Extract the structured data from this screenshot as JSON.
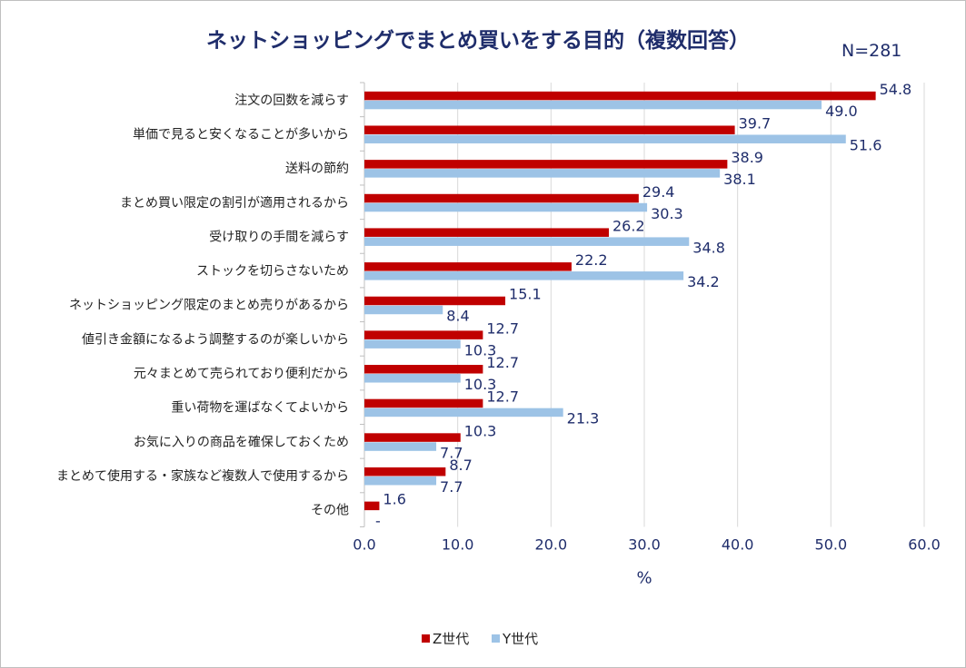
{
  "chart_data": {
    "type": "bar",
    "orientation": "horizontal",
    "title": "ネットショッピングでまとめ買いをする目的（複数回答）",
    "note": "N=281",
    "xlabel": "%",
    "xlim": [
      0,
      60
    ],
    "xticks": [
      "0.0",
      "10.0",
      "20.0",
      "30.0",
      "40.0",
      "50.0",
      "60.0"
    ],
    "grid": true,
    "legend_position": "bottom",
    "categories": [
      "注文の回数を減らす",
      "単価で見ると安くなることが多いから",
      "送料の節約",
      "まとめ買い限定の割引が適用されるから",
      "受け取りの手間を減らす",
      "ストックを切らさないため",
      "ネットショッピング限定のまとめ売りがあるから",
      "値引き金額になるよう調整するのが楽しいから",
      "元々まとめて売られており便利だから",
      "重い荷物を運ばなくてよいから",
      "お気に入りの商品を確保しておくため",
      "まとめて使用する・家族など複数人で使用するから",
      "その他"
    ],
    "series": [
      {
        "name": "Z世代",
        "color": "#c00000",
        "values": [
          54.8,
          39.7,
          38.9,
          29.4,
          26.2,
          22.2,
          15.1,
          12.7,
          12.7,
          12.7,
          10.3,
          8.7,
          1.6
        ],
        "labels": [
          "54.8",
          "39.7",
          "38.9",
          "29.4",
          "26.2",
          "22.2",
          "15.1",
          "12.7",
          "12.7",
          "12.7",
          "10.3",
          "8.7",
          "1.6"
        ]
      },
      {
        "name": "Y世代",
        "color": "#9dc3e6",
        "values": [
          49.0,
          51.6,
          38.1,
          30.3,
          34.8,
          34.2,
          8.4,
          10.3,
          10.3,
          21.3,
          7.7,
          7.7,
          0
        ],
        "labels": [
          "49.0",
          "51.6",
          "38.1",
          "30.3",
          "34.8",
          "34.2",
          "8.4",
          "10.3",
          "10.3",
          "21.3",
          "7.7",
          "7.7",
          "-"
        ]
      }
    ]
  }
}
